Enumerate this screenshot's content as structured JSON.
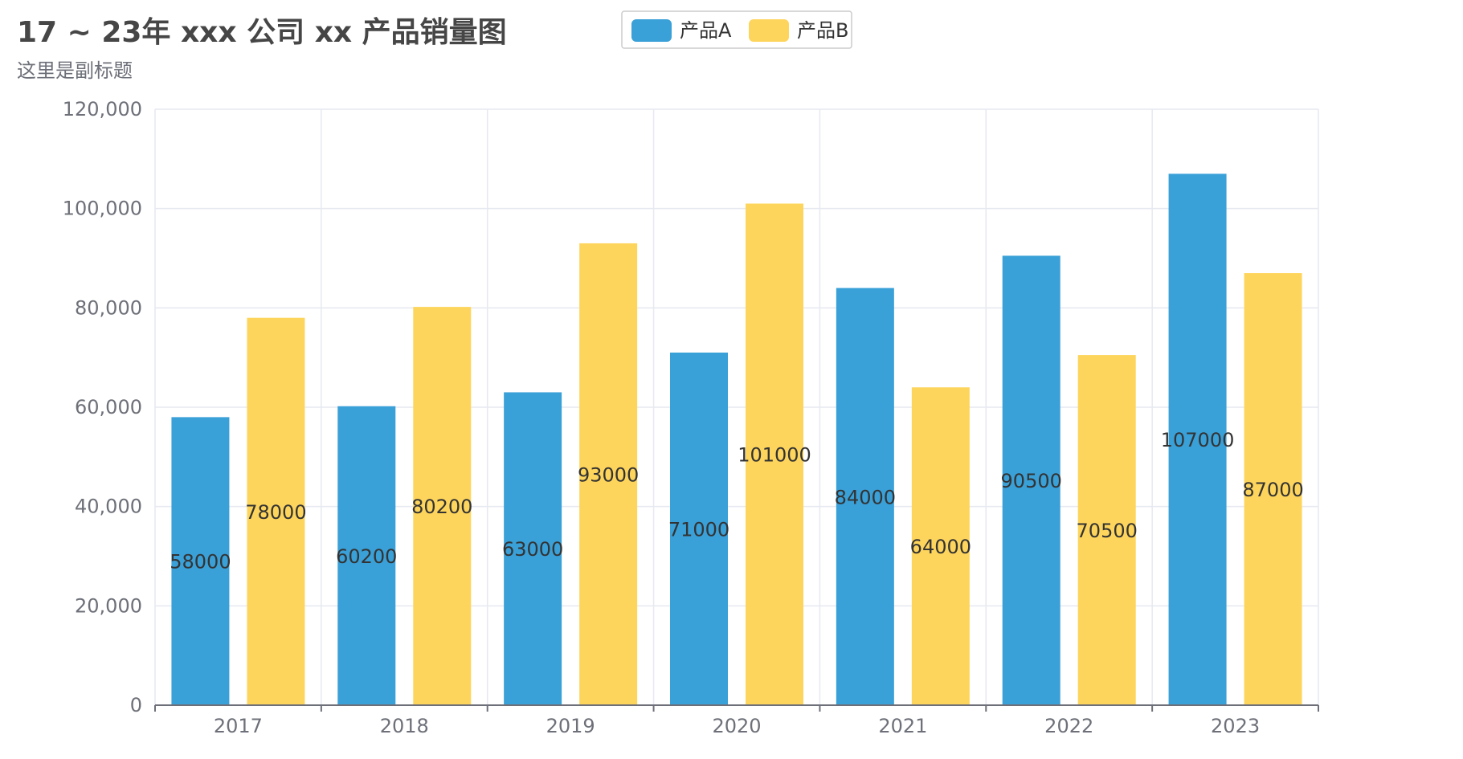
{
  "chart_data": {
    "type": "bar",
    "title": "17 ~ 23年 xxx 公司 xx 产品销量图",
    "subtitle": "这里是副标题",
    "categories": [
      "2017",
      "2018",
      "2019",
      "2020",
      "2021",
      "2022",
      "2023"
    ],
    "series": [
      {
        "name": "产品A",
        "color": "#3aa0d8",
        "values": [
          58000,
          60200,
          63000,
          71000,
          84000,
          90500,
          107000
        ]
      },
      {
        "name": "产品B",
        "color": "#fed55c",
        "values": [
          78000,
          80200,
          93000,
          101000,
          64000,
          70500,
          87000
        ]
      }
    ],
    "xlabel": "",
    "ylabel": "",
    "ylim": [
      0,
      120000
    ],
    "yticks": [
      0,
      20000,
      40000,
      60000,
      80000,
      100000,
      120000
    ],
    "ytick_labels": [
      "0",
      "20,000",
      "40,000",
      "60,000",
      "80,000",
      "100,000",
      "120,000"
    ],
    "grid": true,
    "legend_position": "top-center",
    "data_labels": "inside-middle"
  },
  "colors": {
    "grid": "#e6e9f0",
    "axis": "#6e7079",
    "legend_border": "#cccccc"
  }
}
